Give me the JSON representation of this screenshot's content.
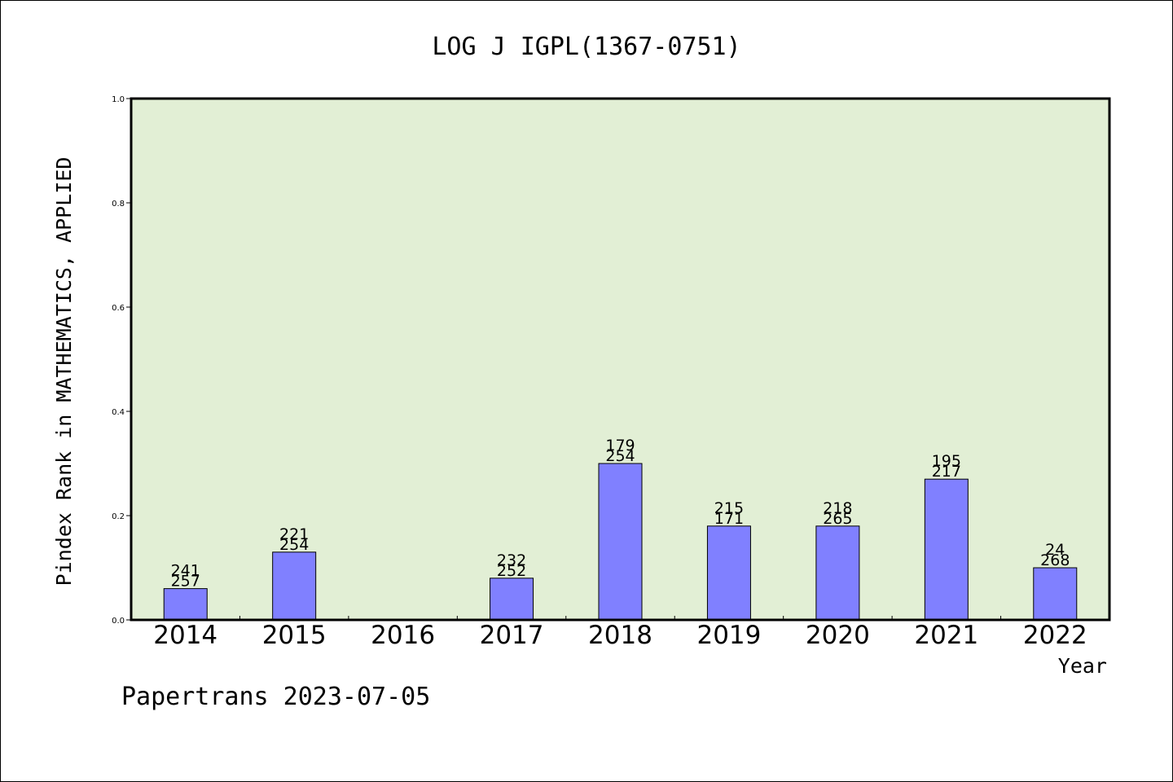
{
  "chart_data": {
    "type": "bar",
    "title": "LOG J IGPL(1367-0751)",
    "xlabel": "Year",
    "ylabel": "Pindex Rank in MATHEMATICS, APPLIED",
    "footer": "Papertrans 2023-07-05",
    "ylim": [
      0,
      1.0
    ],
    "yticks": [
      "0.0",
      "0.2",
      "0.4",
      "0.6",
      "0.8",
      "1.0"
    ],
    "categories": [
      "2014",
      "2015",
      "2016",
      "2017",
      "2018",
      "2019",
      "2020",
      "2021",
      "2022"
    ],
    "values": [
      0.06,
      0.13,
      0,
      0.08,
      0.3,
      0.18,
      0.18,
      0.27,
      0.1
    ],
    "labels_top": [
      "241",
      "221",
      "",
      "232",
      "179",
      "215",
      "218",
      "195",
      "24"
    ],
    "labels_bottom": [
      "257",
      "254",
      "",
      "252",
      "254",
      "171",
      "265",
      "217",
      "268"
    ],
    "grid": false,
    "colors": {
      "bar": "#8080ff",
      "plot_background": "#e2efd5",
      "axis": "#000000"
    }
  }
}
